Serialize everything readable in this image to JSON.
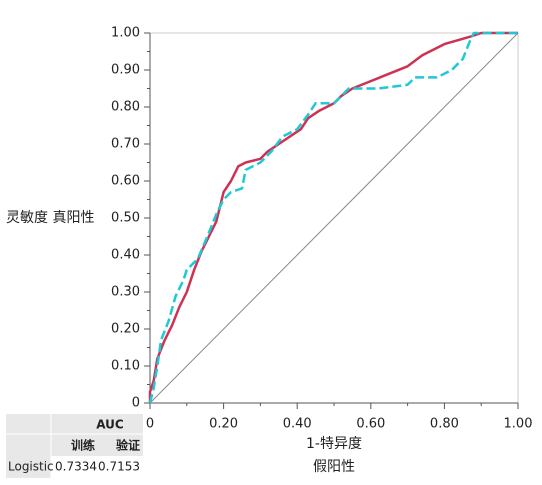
{
  "chart_data": {
    "type": "line",
    "ylabel": "灵敏度 真阳性",
    "xlabel": "1-特异度",
    "xlabel_sub": "假阳性",
    "xlim": [
      0,
      1
    ],
    "ylim": [
      0,
      1
    ],
    "xticks": [
      0,
      {
        "value": 0.2,
        "label": "0.20"
      },
      {
        "value": 0.4,
        "label": "0.40"
      },
      {
        "value": 0.6,
        "label": "0.60"
      },
      {
        "value": 0.8,
        "label": "0.80"
      },
      {
        "value": 1,
        "label": "1.00"
      }
    ],
    "yticks": [
      0,
      {
        "value": 0.1,
        "label": "0.10"
      },
      {
        "value": 0.2,
        "label": "0.20"
      },
      {
        "value": 0.3,
        "label": "0.30"
      },
      {
        "value": 0.4,
        "label": "0.40"
      },
      {
        "value": 0.5,
        "label": "0.50"
      },
      {
        "value": 0.6,
        "label": "0.60"
      },
      {
        "value": 0.7,
        "label": "0.70"
      },
      {
        "value": 0.8,
        "label": "0.80"
      },
      {
        "value": 0.9,
        "label": "0.90"
      },
      {
        "value": 1,
        "label": "1.00"
      }
    ],
    "grid": false,
    "series": [
      {
        "color": "#cc3352",
        "dashed": false,
        "x": [
          0,
          0,
          0.01,
          0.02,
          0.04,
          0.06,
          0.08,
          0.1,
          0.12,
          0.14,
          0.16,
          0.18,
          0.19,
          0.2,
          0.22,
          0.24,
          0.26,
          0.3,
          0.32,
          0.35,
          0.38,
          0.41,
          0.43,
          0.46,
          0.5,
          0.52,
          0.55,
          0.6,
          0.65,
          0.7,
          0.74,
          0.8,
          0.87,
          0.9,
          1
        ],
        "values": [
          0,
          0.03,
          0.06,
          0.12,
          0.17,
          0.21,
          0.26,
          0.3,
          0.36,
          0.41,
          0.45,
          0.49,
          0.53,
          0.57,
          0.6,
          0.64,
          0.65,
          0.66,
          0.68,
          0.7,
          0.72,
          0.74,
          0.77,
          0.79,
          0.81,
          0.83,
          0.85,
          0.87,
          0.89,
          0.91,
          0.94,
          0.97,
          0.99,
          1,
          1
        ]
      },
      {
        "color": "#1fc8d6",
        "dashed": true,
        "x": [
          0,
          0.01,
          0.02,
          0.03,
          0.05,
          0.07,
          0.09,
          0.1,
          0.13,
          0.16,
          0.18,
          0.2,
          0.22,
          0.25,
          0.26,
          0.3,
          0.33,
          0.36,
          0.4,
          0.43,
          0.45,
          0.5,
          0.54,
          0.62,
          0.7,
          0.72,
          0.78,
          0.82,
          0.85,
          0.87,
          0.88,
          1
        ],
        "values": [
          0,
          0.04,
          0.1,
          0.17,
          0.22,
          0.29,
          0.33,
          0.36,
          0.39,
          0.46,
          0.51,
          0.55,
          0.57,
          0.58,
          0.63,
          0.65,
          0.68,
          0.72,
          0.74,
          0.78,
          0.81,
          0.81,
          0.85,
          0.85,
          0.86,
          0.88,
          0.88,
          0.9,
          0.93,
          0.98,
          1,
          1
        ]
      }
    ]
  },
  "auc_table": {
    "header": "AUC",
    "columns": [
      "训练",
      "验证"
    ],
    "rows": [
      {
        "label": "Logistic",
        "values": [
          0.7334,
          0.7153
        ]
      }
    ]
  }
}
